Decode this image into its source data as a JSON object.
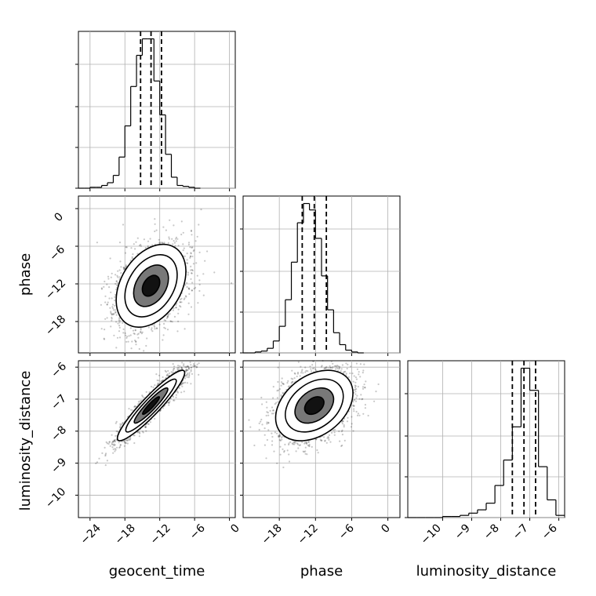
{
  "chart_data": {
    "type": "corner",
    "parameters": [
      "geocent_time",
      "phase",
      "luminosity_distance"
    ],
    "grid": true,
    "quantile_lines_style": "dashed",
    "panels": [
      {
        "kind": "hist",
        "param": "geocent_time",
        "xlim": [
          -26,
          1
        ],
        "tick_values": [
          -24,
          -18,
          -12,
          -6,
          0
        ],
        "bins": [
          {
            "x0": -26.0,
            "x1": -25.0,
            "count": 0
          },
          {
            "x0": -25.0,
            "x1": -24.0,
            "count": 0
          },
          {
            "x0": -24.0,
            "x1": -23.0,
            "count": 1
          },
          {
            "x0": -23.0,
            "x1": -22.0,
            "count": 1
          },
          {
            "x0": -22.0,
            "x1": -21.0,
            "count": 3
          },
          {
            "x0": -21.0,
            "x1": -20.0,
            "count": 6
          },
          {
            "x0": -20.0,
            "x1": -19.0,
            "count": 14
          },
          {
            "x0": -19.0,
            "x1": -18.0,
            "count": 34
          },
          {
            "x0": -18.0,
            "x1": -17.0,
            "count": 68
          },
          {
            "x0": -17.0,
            "x1": -16.0,
            "count": 111
          },
          {
            "x0": -16.0,
            "x1": -15.0,
            "count": 145
          },
          {
            "x0": -15.0,
            "x1": -14.0,
            "count": 163
          },
          {
            "x0": -14.0,
            "x1": -13.0,
            "count": 163
          },
          {
            "x0": -13.0,
            "x1": -12.0,
            "count": 117
          },
          {
            "x0": -12.0,
            "x1": -11.0,
            "count": 80
          },
          {
            "x0": -11.0,
            "x1": -10.0,
            "count": 37
          },
          {
            "x0": -10.0,
            "x1": -9.0,
            "count": 12
          },
          {
            "x0": -9.0,
            "x1": -8.0,
            "count": 3
          },
          {
            "x0": -8.0,
            "x1": -7.0,
            "count": 2
          },
          {
            "x0": -7.0,
            "x1": -6.0,
            "count": 1
          },
          {
            "x0": -6.0,
            "x1": -5.0,
            "count": 0
          }
        ],
        "quantiles": [
          -15.3,
          -13.5,
          -11.7
        ]
      },
      {
        "kind": "scatter2d",
        "x": "geocent_time",
        "y": "phase",
        "xlim": [
          -26,
          1
        ],
        "ylim": [
          -23,
          2
        ],
        "yticks": [
          0,
          -6,
          -12,
          -18
        ],
        "center": [
          -13.5,
          -12.3
        ],
        "spread": [
          3.0,
          3.3
        ],
        "rho": 0.35,
        "n_points": 2400,
        "contours_sigma": [
          0.5,
          1.0,
          1.5,
          2.0
        ]
      },
      {
        "kind": "hist",
        "param": "phase",
        "xlim": [
          -24,
          2
        ],
        "tick_values": [
          -18,
          -12,
          -6,
          0
        ],
        "bins": [
          {
            "x0": -24.0,
            "x1": -23.0,
            "count": 0
          },
          {
            "x0": -23.0,
            "x1": -22.0,
            "count": 0
          },
          {
            "x0": -22.0,
            "x1": -21.0,
            "count": 1
          },
          {
            "x0": -21.0,
            "x1": -20.0,
            "count": 2
          },
          {
            "x0": -20.0,
            "x1": -19.0,
            "count": 5
          },
          {
            "x0": -19.0,
            "x1": -18.0,
            "count": 13
          },
          {
            "x0": -18.0,
            "x1": -17.0,
            "count": 29
          },
          {
            "x0": -17.0,
            "x1": -16.0,
            "count": 58
          },
          {
            "x0": -16.0,
            "x1": -15.0,
            "count": 99
          },
          {
            "x0": -15.0,
            "x1": -14.0,
            "count": 142
          },
          {
            "x0": -14.0,
            "x1": -13.0,
            "count": 163
          },
          {
            "x0": -13.0,
            "x1": -12.0,
            "count": 156
          },
          {
            "x0": -12.0,
            "x1": -11.0,
            "count": 125
          },
          {
            "x0": -11.0,
            "x1": -10.0,
            "count": 84
          },
          {
            "x0": -10.0,
            "x1": -9.0,
            "count": 47
          },
          {
            "x0": -9.0,
            "x1": -8.0,
            "count": 22
          },
          {
            "x0": -8.0,
            "x1": -7.0,
            "count": 9
          },
          {
            "x0": -7.0,
            "x1": -6.0,
            "count": 3
          },
          {
            "x0": -6.0,
            "x1": -5.0,
            "count": 1
          },
          {
            "x0": -5.0,
            "x1": -4.0,
            "count": 0
          }
        ],
        "quantiles": [
          -14.2,
          -12.2,
          -10.2
        ]
      },
      {
        "kind": "scatter2d",
        "x": "geocent_time",
        "y": "luminosity_distance",
        "xlim": [
          -26,
          1
        ],
        "ylim": [
          -10.7,
          -5.8
        ],
        "yticks": [
          -6,
          -7,
          -8,
          -9,
          -10
        ],
        "center": [
          -13.5,
          -7.2
        ],
        "spread": [
          2.9,
          0.55
        ],
        "rho": 0.93,
        "n_points": 2400,
        "contours_sigma": [
          0.5,
          1.0,
          1.5,
          2.0
        ]
      },
      {
        "kind": "scatter2d",
        "x": "phase",
        "y": "luminosity_distance",
        "xlim": [
          -24,
          2
        ],
        "ylim": [
          -10.7,
          -5.8
        ],
        "center": [
          -12.2,
          -7.2
        ],
        "spread": [
          3.2,
          0.55
        ],
        "rho": 0.35,
        "n_points": 2400,
        "contours_sigma": [
          0.5,
          1.0,
          1.5,
          2.0
        ]
      },
      {
        "kind": "hist",
        "param": "luminosity_distance",
        "xlim": [
          -11.2,
          -5.8
        ],
        "tick_values": [
          -10,
          -9,
          -8,
          -7,
          -6
        ],
        "bins": [
          {
            "x0": -11.2,
            "x1": -10.9,
            "count": 0
          },
          {
            "x0": -10.9,
            "x1": -10.6,
            "count": 0
          },
          {
            "x0": -10.6,
            "x1": -10.3,
            "count": 0
          },
          {
            "x0": -10.3,
            "x1": -10.0,
            "count": 0
          },
          {
            "x0": -10.0,
            "x1": -9.7,
            "count": 1
          },
          {
            "x0": -9.7,
            "x1": -9.4,
            "count": 1
          },
          {
            "x0": -9.4,
            "x1": -9.1,
            "count": 2
          },
          {
            "x0": -9.1,
            "x1": -8.8,
            "count": 4
          },
          {
            "x0": -8.8,
            "x1": -8.5,
            "count": 7
          },
          {
            "x0": -8.5,
            "x1": -8.2,
            "count": 13
          },
          {
            "x0": -8.2,
            "x1": -7.9,
            "count": 29
          },
          {
            "x0": -7.9,
            "x1": -7.6,
            "count": 52
          },
          {
            "x0": -7.6,
            "x1": -7.3,
            "count": 82
          },
          {
            "x0": -7.3,
            "x1": -7.0,
            "count": 135
          },
          {
            "x0": -7.0,
            "x1": -6.7,
            "count": 115
          },
          {
            "x0": -6.7,
            "x1": -6.4,
            "count": 46
          },
          {
            "x0": -6.4,
            "x1": -6.1,
            "count": 16
          },
          {
            "x0": -6.1,
            "x1": -5.8,
            "count": 2
          }
        ],
        "quantiles": [
          -7.6,
          -7.2,
          -6.8
        ]
      }
    ],
    "tick_labels": {
      "geocent_time": [
        "−24",
        "−18",
        "−12",
        "−6",
        "0"
      ],
      "phase_x": [
        "−18",
        "−12",
        "−6",
        "0"
      ],
      "phase_y": [
        "0",
        "−6",
        "−12",
        "−18"
      ],
      "luminosity_distance_x": [
        "−10",
        "−9",
        "−8",
        "−7",
        "−6"
      ],
      "luminosity_distance_y": [
        "−6",
        "−7",
        "−8",
        "−9",
        "−10"
      ]
    },
    "axis_labels": {
      "x_bottom": [
        "geocent_time",
        "phase",
        "luminosity_distance"
      ],
      "y_left": [
        "phase",
        "luminosity_distance"
      ]
    }
  }
}
